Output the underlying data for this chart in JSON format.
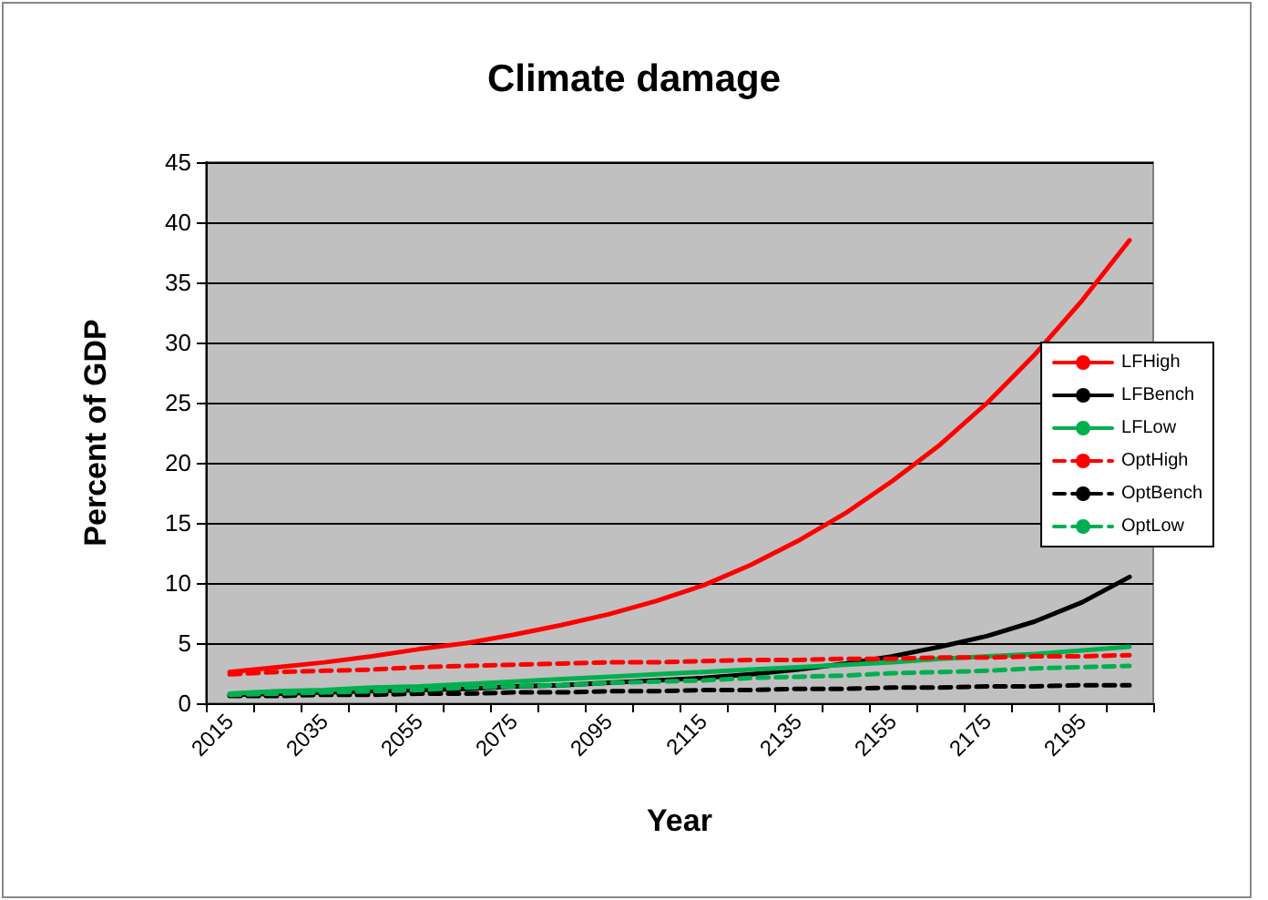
{
  "chart_data": {
    "type": "line",
    "title": "Climate damage",
    "xlabel": "Year",
    "ylabel": "Percent of GDP",
    "categories": [
      "2015",
      null,
      "2035",
      null,
      "2055",
      null,
      "2075",
      null,
      "2095",
      null,
      "2115",
      null,
      "2135",
      null,
      "2155",
      null,
      "2175",
      null,
      "2195",
      null
    ],
    "ylim": [
      0,
      45
    ],
    "yticks": [
      0,
      5,
      10,
      15,
      20,
      25,
      30,
      35,
      40,
      45
    ],
    "grid": "y",
    "legend": "right",
    "marker": "none",
    "series": [
      {
        "name": "LFHigh",
        "color": "#ff0000",
        "line_style": "solid",
        "values": [
          2.6,
          3.0,
          3.4,
          3.9,
          4.5,
          5.0,
          5.7,
          6.5,
          7.4,
          8.5,
          9.8,
          11.5,
          13.5,
          15.8,
          18.5,
          21.5,
          25,
          29,
          33.5,
          38.5
        ]
      },
      {
        "name": "LFBench",
        "color": "#000000",
        "line_style": "solid",
        "values": [
          0.7,
          0.8,
          0.9,
          1.0,
          1.1,
          1.2,
          1.4,
          1.5,
          1.7,
          1.9,
          2.1,
          2.4,
          2.8,
          3.3,
          3.9,
          4.7,
          5.6,
          6.8,
          8.4,
          10.5
        ]
      },
      {
        "name": "LFLow",
        "color": "#00b050",
        "line_style": "solid",
        "values": [
          0.8,
          1.0,
          1.1,
          1.3,
          1.4,
          1.6,
          1.8,
          2.0,
          2.2,
          2.4,
          2.6,
          2.8,
          3.0,
          3.2,
          3.4,
          3.7,
          3.9,
          4.1,
          4.4,
          4.7
        ]
      },
      {
        "name": "OptHigh",
        "color": "#ff0000",
        "line_style": "dashed",
        "values": [
          2.4,
          2.6,
          2.7,
          2.8,
          3.0,
          3.1,
          3.2,
          3.3,
          3.4,
          3.4,
          3.5,
          3.6,
          3.6,
          3.7,
          3.7,
          3.8,
          3.8,
          3.9,
          3.9,
          4.0
        ]
      },
      {
        "name": "OptBench",
        "color": "#000000",
        "line_style": "dashed",
        "values": [
          0.6,
          0.6,
          0.7,
          0.7,
          0.8,
          0.8,
          0.9,
          0.9,
          1.0,
          1.0,
          1.1,
          1.1,
          1.2,
          1.2,
          1.3,
          1.3,
          1.4,
          1.4,
          1.5,
          1.5
        ]
      },
      {
        "name": "OptLow",
        "color": "#00b050",
        "line_style": "dashed",
        "values": [
          0.7,
          0.8,
          0.9,
          1.0,
          1.1,
          1.3,
          1.4,
          1.5,
          1.7,
          1.8,
          1.9,
          2.1,
          2.2,
          2.3,
          2.5,
          2.6,
          2.7,
          2.9,
          3.0,
          3.1
        ]
      }
    ]
  }
}
